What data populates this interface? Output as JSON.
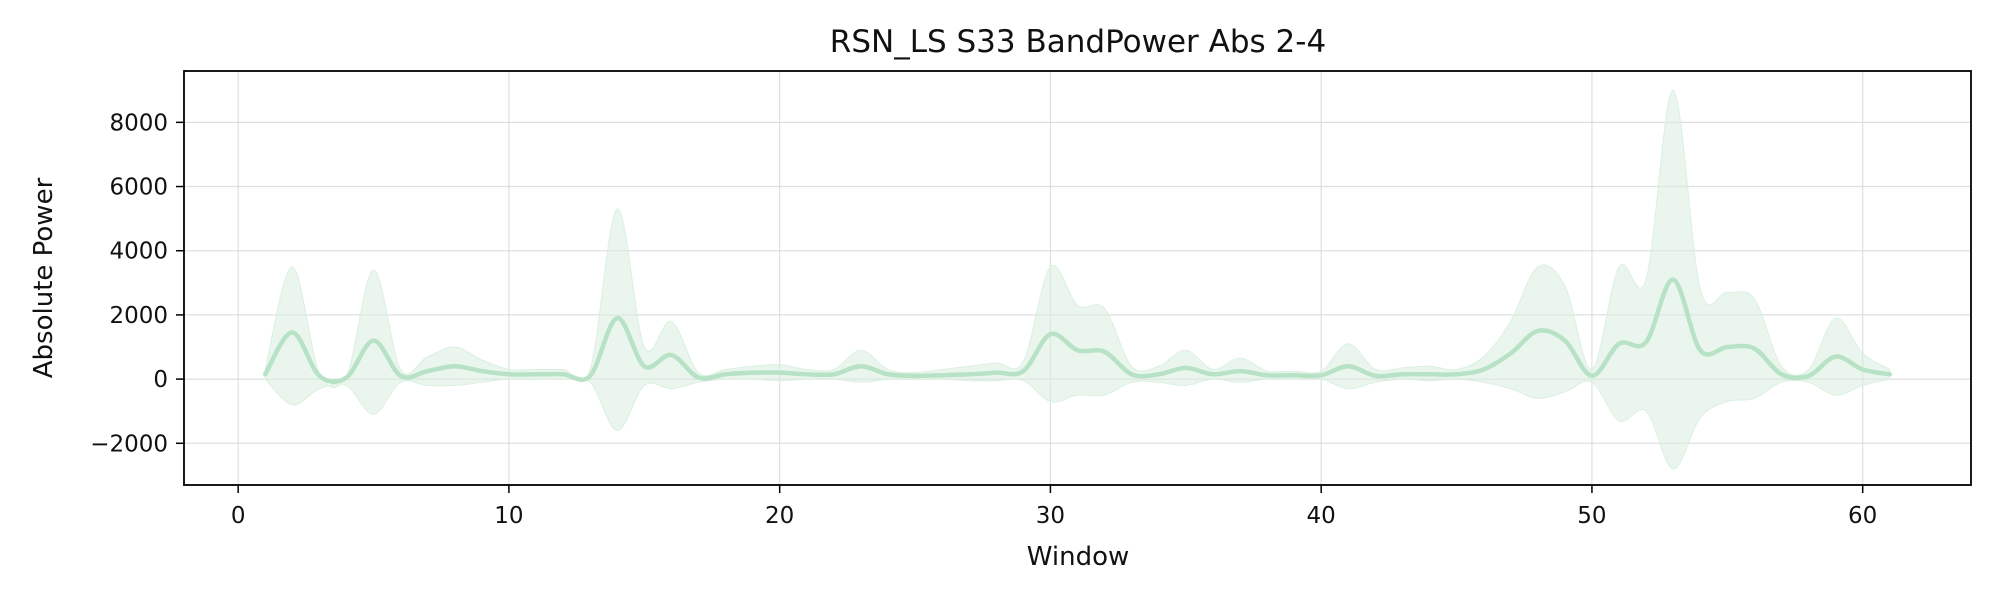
{
  "chart_data": {
    "type": "line",
    "title": "RSN_LS S33 BandPower Abs 2-4",
    "xlabel": "Window",
    "ylabel": "Absolute Power",
    "xlim": [
      -2,
      64
    ],
    "ylim": [
      -3300,
      9600
    ],
    "xticks": [
      0,
      10,
      20,
      30,
      40,
      50,
      60
    ],
    "yticks": [
      -2000,
      0,
      2000,
      4000,
      6000,
      8000
    ],
    "grid": true,
    "line_color": "#b7e2c5",
    "band_color": "#d8eedf",
    "x": [
      1,
      2,
      3,
      4,
      5,
      6,
      7,
      8,
      9,
      10,
      11,
      12,
      13,
      14,
      15,
      16,
      17,
      18,
      19,
      20,
      21,
      22,
      23,
      24,
      25,
      26,
      27,
      28,
      29,
      30,
      31,
      32,
      33,
      34,
      35,
      36,
      37,
      38,
      39,
      40,
      41,
      42,
      43,
      44,
      45,
      46,
      47,
      48,
      49,
      50,
      51,
      52,
      53,
      54,
      55,
      56,
      57,
      58,
      59,
      60,
      61
    ],
    "series": [
      {
        "values": [
          150,
          1450,
          100,
          50,
          1200,
          100,
          250,
          400,
          250,
          150,
          150,
          150,
          100,
          1900,
          400,
          750,
          50,
          150,
          200,
          200,
          150,
          150,
          400,
          150,
          100,
          120,
          150,
          200,
          250,
          1400,
          900,
          850,
          150,
          150,
          350,
          150,
          250,
          120,
          120,
          120,
          400,
          100,
          150,
          150,
          150,
          300,
          800,
          1500,
          1200,
          100,
          1100,
          1150,
          3100,
          900,
          1000,
          950,
          150,
          100,
          700,
          300,
          150
        ],
        "upper": [
          300,
          3500,
          200,
          100,
          3400,
          300,
          700,
          1000,
          600,
          300,
          300,
          300,
          300,
          5300,
          1000,
          1800,
          200,
          300,
          400,
          450,
          300,
          300,
          900,
          300,
          200,
          300,
          400,
          500,
          550,
          3500,
          2300,
          2200,
          400,
          400,
          900,
          300,
          650,
          250,
          250,
          250,
          1100,
          300,
          350,
          400,
          300,
          700,
          1800,
          3500,
          2900,
          300,
          3500,
          3100,
          9000,
          2800,
          2700,
          2500,
          400,
          300,
          1900,
          800,
          300
        ],
        "lower": [
          0,
          -800,
          -300,
          -200,
          -1100,
          -100,
          -200,
          -200,
          -100,
          0,
          0,
          0,
          -100,
          -1600,
          -200,
          -300,
          -100,
          0,
          0,
          -50,
          0,
          0,
          -100,
          0,
          0,
          0,
          -50,
          -50,
          -50,
          -700,
          -500,
          -500,
          -100,
          -100,
          -200,
          0,
          -100,
          0,
          0,
          0,
          -300,
          -100,
          0,
          -50,
          0,
          -100,
          -300,
          -600,
          -400,
          -100,
          -1300,
          -1000,
          -2800,
          -1200,
          -700,
          -600,
          -100,
          -100,
          -500,
          -200,
          0
        ]
      }
    ]
  }
}
